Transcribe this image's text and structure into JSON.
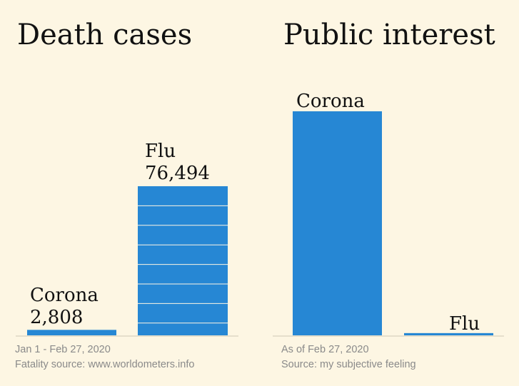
{
  "colors": {
    "background": "#fdf6e3",
    "bar": "#2687d4",
    "stripe": "#fdf6e3",
    "baseline": "#e6dfcc",
    "title": "#111111",
    "note": "#8a8a8a"
  },
  "chart_data": [
    {
      "type": "bar",
      "title": "Death cases",
      "categories": [
        "Corona",
        "Flu"
      ],
      "value_labels": [
        "2,808",
        "76,494"
      ],
      "values": [
        2808,
        76494
      ],
      "ylim": [
        0,
        76494
      ],
      "grid": false,
      "bar_style": "striped-segments",
      "notes": [
        "Jan 1 - Feb 27, 2020",
        "Fatality source: www.worldometers.info"
      ]
    },
    {
      "type": "bar",
      "title": "Public interest",
      "categories": [
        "Corona",
        "Flu"
      ],
      "values": [
        100,
        1
      ],
      "ylim": [
        0,
        100
      ],
      "grid": false,
      "bar_style": "solid",
      "notes": [
        "As of Feb 27, 2020",
        "Source: my subjective feeling"
      ]
    }
  ]
}
